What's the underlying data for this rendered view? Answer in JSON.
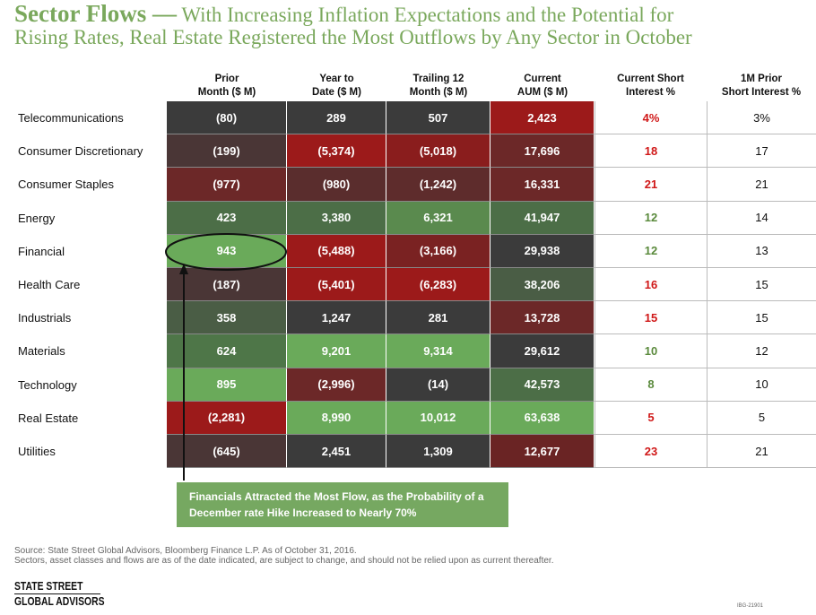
{
  "header": {
    "title_lead": "Sector Flows —",
    "title_line1": "With Increasing Inflation Expectations and the Potential for",
    "title_line2": "Rising Rates, Real Estate Registered the Most Outflows by Any Sector in October"
  },
  "table": {
    "columns": [
      [
        "Prior",
        "Month ($ M)"
      ],
      [
        "Year to",
        "Date ($ M)"
      ],
      [
        "Trailing 12",
        "Month ($ M)"
      ],
      [
        "Current",
        "AUM ($ M)"
      ],
      [
        "Current Short",
        "Interest %"
      ],
      [
        "1M Prior",
        "Short Interest %"
      ]
    ],
    "rows": [
      [
        "Telecommunications",
        "(80)",
        "289",
        "507",
        "2,423",
        "4%",
        "3%"
      ],
      [
        "Consumer Discretionary",
        "(199)",
        "(5,374)",
        "(5,018)",
        "17,696",
        "18",
        "17"
      ],
      [
        "Consumer Staples",
        "(977)",
        "(980)",
        "(1,242)",
        "16,331",
        "21",
        "21"
      ],
      [
        "Energy",
        "423",
        "3,380",
        "6,321",
        "41,947",
        "12",
        "14"
      ],
      [
        "Financial",
        "943",
        "(5,488)",
        "(3,166)",
        "29,938",
        "12",
        "13"
      ],
      [
        "Health Care",
        "(187)",
        "(5,401)",
        "(6,283)",
        "38,206",
        "16",
        "15"
      ],
      [
        "Industrials",
        "358",
        "1,247",
        "281",
        "13,728",
        "15",
        "15"
      ],
      [
        "Materials",
        "624",
        "9,201",
        "9,314",
        "29,612",
        "10",
        "12"
      ],
      [
        "Technology",
        "895",
        "(2,996)",
        "(14)",
        "42,573",
        "8",
        "10"
      ],
      [
        "Real Estate",
        "(2,281)",
        "8,990",
        "10,012",
        "63,638",
        "5",
        "5"
      ],
      [
        "Utilities",
        "(645)",
        "2,451",
        "1,309",
        "12,677",
        "23",
        "21"
      ]
    ]
  },
  "callout": {
    "line1": "Financials Attracted the Most Flow, as the Probability of a",
    "line2": "December rate Hike Increased to Nearly 70%"
  },
  "footer": {
    "source": "Source: State Street Global Advisors, Bloomberg Finance L.P. As of October 31, 2016.",
    "disclaimer": "Sectors, asset classes and flows are as of the date indicated, are subject to change, and should not be relied upon as current thereafter.",
    "logo_line1": "STATE STREET",
    "logo_line2": "GLOBAL ADVISORS",
    "code": "IBG-21901"
  }
}
